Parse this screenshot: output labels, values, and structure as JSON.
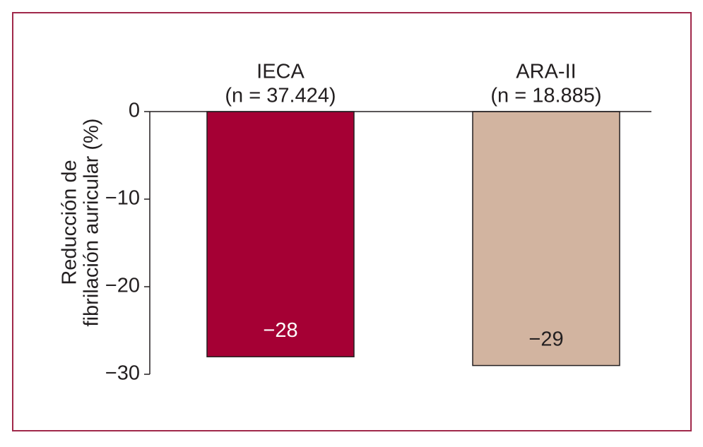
{
  "chart_data": {
    "type": "bar",
    "categories": [
      "IECA",
      "ARA-II"
    ],
    "category_subtitles": [
      "(n = 37.424)",
      "(n = 18.885)"
    ],
    "y_label": [
      "Reducción de",
      "fibrilación auricular (%)"
    ],
    "values": [
      -28,
      -29
    ],
    "value_labels": [
      "−28",
      "−29"
    ],
    "colors": [
      "#a50034",
      "#d2b4a0"
    ],
    "ylim": [
      -30,
      0
    ],
    "yticks": [
      0,
      {
        "value": -10,
        "label": "−10"
      },
      {
        "value": -20,
        "label": "−20"
      },
      {
        "value": -30,
        "label": "−30"
      }
    ],
    "grid": false
  }
}
